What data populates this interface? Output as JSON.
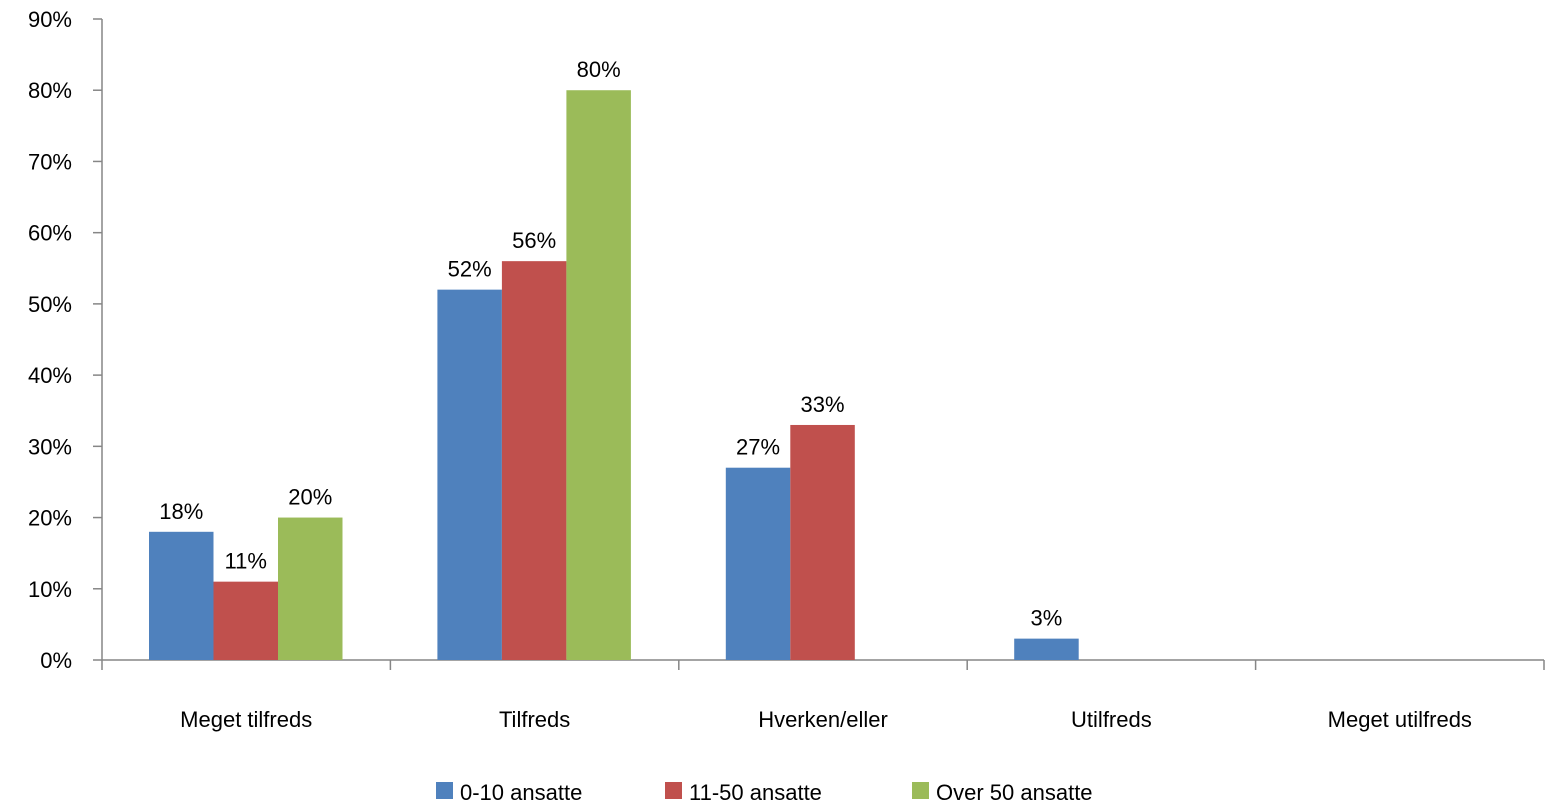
{
  "chart_data": {
    "type": "bar",
    "categories": [
      "Meget tilfreds",
      "Tilfreds",
      "Hverken/eller",
      "Utilfreds",
      "Meget utilfreds"
    ],
    "series": [
      {
        "name": "0-10 ansatte",
        "color": "#4F81BD",
        "values": [
          18,
          52,
          27,
          3,
          0
        ]
      },
      {
        "name": "11-50 ansatte",
        "color": "#C0504D",
        "values": [
          11,
          56,
          33,
          0,
          0
        ]
      },
      {
        "name": "Over 50 ansatte",
        "color": "#9BBB59",
        "values": [
          20,
          80,
          0,
          0,
          0
        ]
      }
    ],
    "data_labels": [
      [
        "18%",
        "52%",
        "27%",
        "3%",
        ""
      ],
      [
        "11%",
        "56%",
        "33%",
        "",
        ""
      ],
      [
        "20%",
        "80%",
        "",
        "",
        ""
      ]
    ],
    "y_tick_labels": [
      "0%",
      "10%",
      "20%",
      "30%",
      "40%",
      "50%",
      "60%",
      "70%",
      "80%",
      "90%"
    ],
    "ylim": [
      0,
      90
    ],
    "y_step": 10,
    "title": "",
    "xlabel": "",
    "ylabel": "",
    "grid": false,
    "legend_position": "bottom"
  }
}
